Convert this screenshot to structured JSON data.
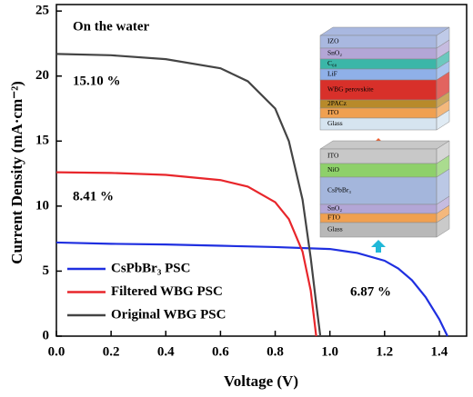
{
  "chart_data": {
    "type": "line",
    "xlabel": "Voltage (V)",
    "ylabel": "Current Density (mA·cm⁻²)",
    "xlim": [
      0,
      1.5
    ],
    "ylim": [
      0,
      25.5
    ],
    "xticks": [
      {
        "value": 0,
        "label": "0.0"
      },
      0.2,
      0.4,
      0.6,
      0.8,
      {
        "value": 1,
        "label": "1.0"
      },
      1.2,
      1.4
    ],
    "yticks": [
      0,
      5,
      10,
      15,
      20,
      25
    ],
    "legend": "lower left",
    "annotations": [
      "On the water",
      "15.10 %",
      "8.41 %",
      "6.87 %"
    ],
    "series": [
      {
        "name": "CsPbBr₃ PSC",
        "color": "#1f2fe0",
        "x": [
          0,
          0.2,
          0.4,
          0.6,
          0.8,
          1.0,
          1.1,
          1.2,
          1.25,
          1.3,
          1.35,
          1.4,
          1.43
        ],
        "values": [
          7.2,
          7.1,
          7.05,
          6.95,
          6.85,
          6.7,
          6.4,
          5.8,
          5.2,
          4.3,
          3.0,
          1.3,
          0
        ]
      },
      {
        "name": "Filtered WBG PSC",
        "color": "#e8262b",
        "x": [
          0,
          0.2,
          0.4,
          0.6,
          0.7,
          0.8,
          0.85,
          0.9,
          0.93,
          0.95
        ],
        "values": [
          12.6,
          12.55,
          12.4,
          12.0,
          11.5,
          10.3,
          9.0,
          6.5,
          3.5,
          0
        ]
      },
      {
        "name": "Original WBG PSC",
        "color": "#444444",
        "x": [
          0,
          0.2,
          0.4,
          0.6,
          0.7,
          0.8,
          0.85,
          0.9,
          0.93,
          0.95,
          0.965
        ],
        "values": [
          21.7,
          21.6,
          21.3,
          20.6,
          19.6,
          17.5,
          15.0,
          10.5,
          6.0,
          2.5,
          0
        ]
      }
    ]
  },
  "inset": {
    "top_stack": [
      {
        "label": "IZO",
        "color": "#a9b8e0"
      },
      {
        "label": "SnO₂",
        "color": "#b3a6d6"
      },
      {
        "label": "C₆₀",
        "color": "#3bb6a8"
      },
      {
        "label": "LiF",
        "color": "#8fb0e8"
      },
      {
        "label": "WBG perovskite",
        "color": "#d8302a"
      },
      {
        "label": "2PACz",
        "color": "#b88a2a"
      },
      {
        "label": "ITO",
        "color": "#f0a050"
      },
      {
        "label": "Glass",
        "color": "#d6e4f0"
      }
    ],
    "bottom_stack": [
      {
        "label": "ITO",
        "color": "#c8c8c8"
      },
      {
        "label": "NiO",
        "color": "#8ed06a"
      },
      {
        "label": "CsPbBr₃",
        "color": "#a4b6dc"
      },
      {
        "label": "SnO₂",
        "color": "#b3a6d6"
      },
      {
        "label": "FTO",
        "color": "#f0a050"
      },
      {
        "label": "Glass",
        "color": "#b8b8b8"
      }
    ]
  }
}
